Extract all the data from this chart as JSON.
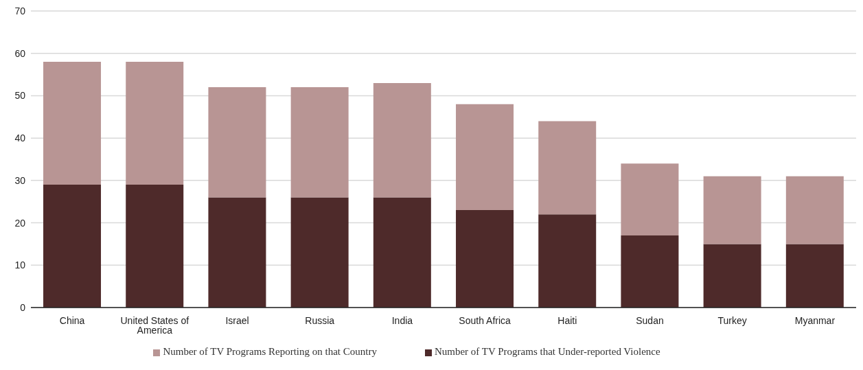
{
  "chart_data": {
    "type": "bar",
    "stacked": true,
    "categories": [
      "China",
      "United States of America",
      "Israel",
      "Russia",
      "India",
      "South Africa",
      "Haiti",
      "Sudan",
      "Turkey",
      "Myanmar"
    ],
    "series": [
      {
        "name": "Number of TV Programs that Under-reported Violence",
        "color": "#4e2a2a",
        "values": [
          29,
          29,
          26,
          26,
          26,
          23,
          22,
          17,
          15,
          15
        ]
      },
      {
        "name": "Number of TV Programs Reporting on that Country",
        "color": "#b89594",
        "values": [
          29,
          29,
          26,
          26,
          27,
          25,
          22,
          17,
          16,
          16
        ]
      }
    ],
    "ylim": [
      0,
      70
    ],
    "yticks": [
      0,
      10,
      20,
      30,
      40,
      50,
      60,
      70
    ],
    "grid": "y",
    "legend": "bottom"
  }
}
